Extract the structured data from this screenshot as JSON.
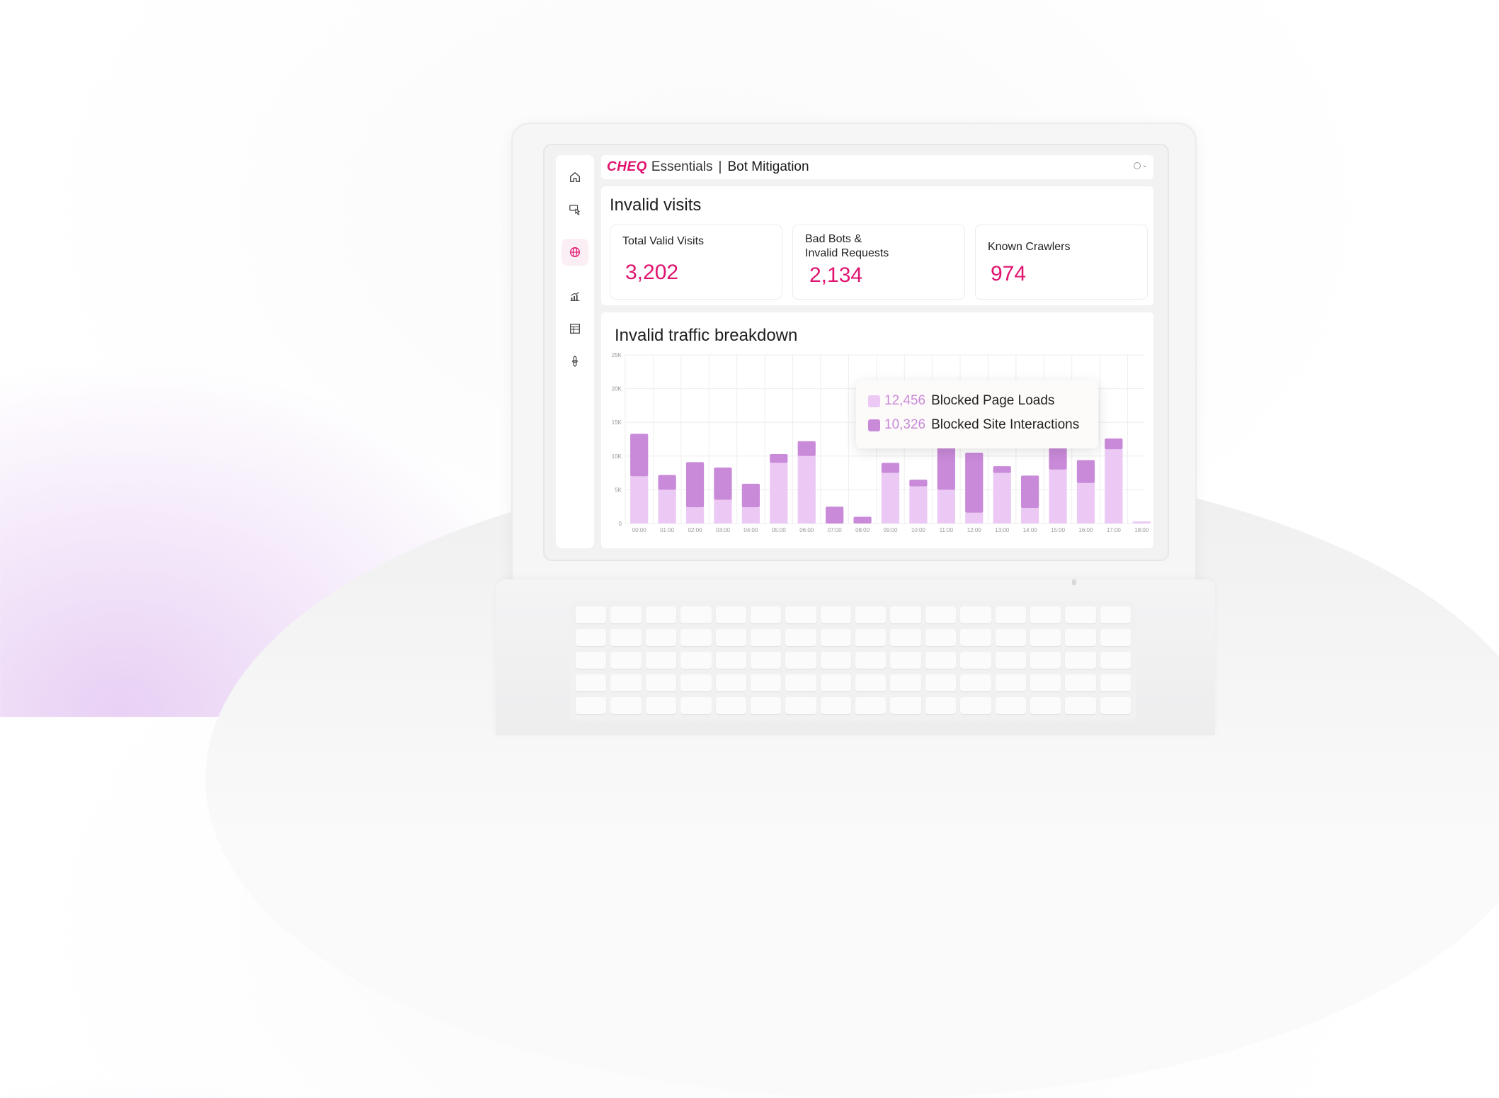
{
  "header": {
    "logo": "CHEQ",
    "product": "Essentials",
    "separator": "|",
    "page_name": "Bot Mitigation"
  },
  "sidebar": {
    "items": [
      {
        "icon": "home-icon",
        "active": false
      },
      {
        "icon": "click-monitor-icon",
        "active": false
      },
      {
        "icon": "globe-icon",
        "active": true
      },
      {
        "icon": "analytics-chart-icon",
        "active": false
      },
      {
        "icon": "table-report-icon",
        "active": false
      },
      {
        "icon": "settings-gear-icon",
        "active": false
      }
    ]
  },
  "visits": {
    "title": "Invalid visits",
    "cards": [
      {
        "label_lines": [
          "Total Valid Visits"
        ],
        "value": "3,202"
      },
      {
        "label_lines": [
          "Bad Bots &",
          "Invalid Requests"
        ],
        "value": "2,134"
      },
      {
        "label_lines": [
          "Known Crawlers"
        ],
        "value": "974"
      }
    ]
  },
  "breakdown": {
    "title": "Invalid traffic breakdown",
    "tooltip": {
      "rows": [
        {
          "value": "12,456",
          "label": "Blocked Page Loads",
          "color": "#ecc9f5"
        },
        {
          "value": "10,326",
          "label": "Blocked Site Interactions",
          "color": "#c98ad9"
        }
      ]
    }
  },
  "colors": {
    "brand": "#e0136f",
    "page_loads": "#ecc9f5",
    "site_interactions": "#c98ad9"
  },
  "chart_data": {
    "type": "bar",
    "stacked": true,
    "categories": [
      "00:00",
      "01:00",
      "02:00",
      "03:00",
      "04:00",
      "05:00",
      "06:00",
      "07:00",
      "08:00",
      "09:00",
      "10:00",
      "11:00",
      "12:00",
      "13:00",
      "14:00",
      "15:00",
      "16:00",
      "17:00",
      "18:00"
    ],
    "series": [
      {
        "name": "Blocked Page Loads",
        "values": [
          7000,
          5000,
          2400,
          3500,
          2400,
          9000,
          10000,
          0,
          0,
          7500,
          5500,
          5000,
          1600,
          7500,
          2300,
          8000,
          6000,
          11000,
          300
        ]
      },
      {
        "name": "Blocked Site Interactions",
        "values": [
          6300,
          2200,
          6700,
          4800,
          3500,
          1300,
          2200,
          2500,
          1000,
          1500,
          1000,
          9000,
          8900,
          1000,
          4800,
          6000,
          3400,
          1600,
          0
        ]
      }
    ],
    "yticks": [
      "0",
      "5K",
      "10K",
      "15K",
      "20K",
      "25K"
    ],
    "ylim": [
      0,
      25000
    ],
    "grid": true
  }
}
